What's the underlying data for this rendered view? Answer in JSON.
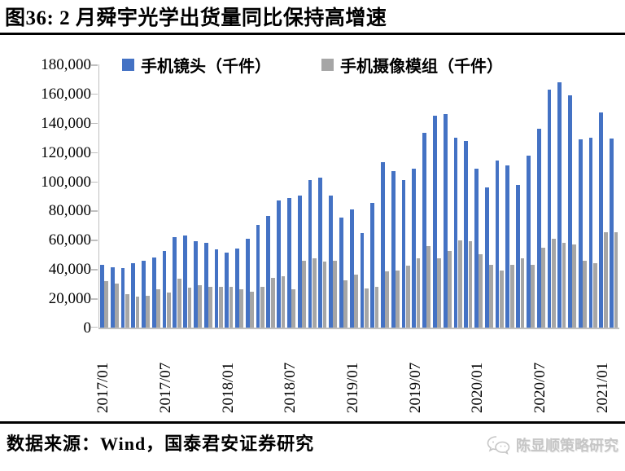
{
  "figure": {
    "title": "图36: 2 月舜宇光学出货量同比保持高增速",
    "source": "数据来源：Wind，国泰君安证券研究",
    "watermark": "陈显顺策略研究",
    "watermark_icon": "chat-bubble-icon"
  },
  "colors": {
    "lens_blue": "#4472C4",
    "module_gray": "#A6A6A6",
    "axis_gray": "#BFBFBF",
    "watermark_gray": "#c6c6c6"
  },
  "chart_data": {
    "type": "bar",
    "title": "",
    "xlabel": "",
    "ylabel": "",
    "ylim": [
      0,
      180000
    ],
    "y_ticks": [
      0,
      20000,
      40000,
      60000,
      80000,
      100000,
      120000,
      140000,
      160000,
      180000
    ],
    "grid": false,
    "legend_position": "top-center",
    "x_tick_labels": [
      "2017/01",
      "2017/07",
      "2018/01",
      "2018/07",
      "2019/01",
      "2019/07",
      "2020/01",
      "2020/07",
      "2021/01"
    ],
    "x_tick_indices": [
      0,
      6,
      12,
      18,
      24,
      30,
      36,
      42,
      48
    ],
    "categories": [
      "2017/01",
      "2017/02",
      "2017/03",
      "2017/04",
      "2017/05",
      "2017/06",
      "2017/07",
      "2017/08",
      "2017/09",
      "2017/10",
      "2017/11",
      "2017/12",
      "2018/01",
      "2018/02",
      "2018/03",
      "2018/04",
      "2018/05",
      "2018/06",
      "2018/07",
      "2018/08",
      "2018/09",
      "2018/10",
      "2018/11",
      "2018/12",
      "2019/01",
      "2019/02",
      "2019/03",
      "2019/04",
      "2019/05",
      "2019/06",
      "2019/07",
      "2019/08",
      "2019/09",
      "2019/10",
      "2019/11",
      "2019/12",
      "2020/01",
      "2020/02",
      "2020/03",
      "2020/04",
      "2020/05",
      "2020/06",
      "2020/07",
      "2020/08",
      "2020/09",
      "2020/10",
      "2020/11",
      "2020/12",
      "2021/01",
      "2021/02"
    ],
    "series": [
      {
        "name": "手机镜头（千件）",
        "color": "#4472C4",
        "values": [
          43000,
          41500,
          40500,
          44000,
          45500,
          48000,
          52500,
          62000,
          63000,
          59000,
          58000,
          53500,
          51500,
          54000,
          60500,
          70500,
          76500,
          87000,
          88500,
          90500,
          101000,
          102500,
          90500,
          75500,
          81000,
          64500,
          85500,
          113000,
          107000,
          101000,
          108500,
          133000,
          145000,
          146000,
          130000,
          127500,
          108500,
          96000,
          114000,
          111000,
          97500,
          117500,
          136000,
          163000,
          167500,
          159000,
          128500,
          130000,
          147000,
          129500
        ]
      },
      {
        "name": "手机摄像模组（千件）",
        "color": "#A6A6A6",
        "values": [
          32000,
          30000,
          23000,
          21000,
          21500,
          26000,
          24000,
          33500,
          27500,
          29000,
          28000,
          28000,
          28000,
          26000,
          24500,
          28000,
          34000,
          35000,
          26000,
          46000,
          47500,
          45000,
          45500,
          32500,
          36000,
          26500,
          28000,
          38500,
          39000,
          42500,
          47500,
          55500,
          47500,
          52500,
          59500,
          59000,
          50000,
          43000,
          39000,
          43000,
          47500,
          43000,
          54500,
          60500,
          58000,
          57000,
          46000,
          44000,
          65000,
          65500
        ]
      }
    ]
  }
}
